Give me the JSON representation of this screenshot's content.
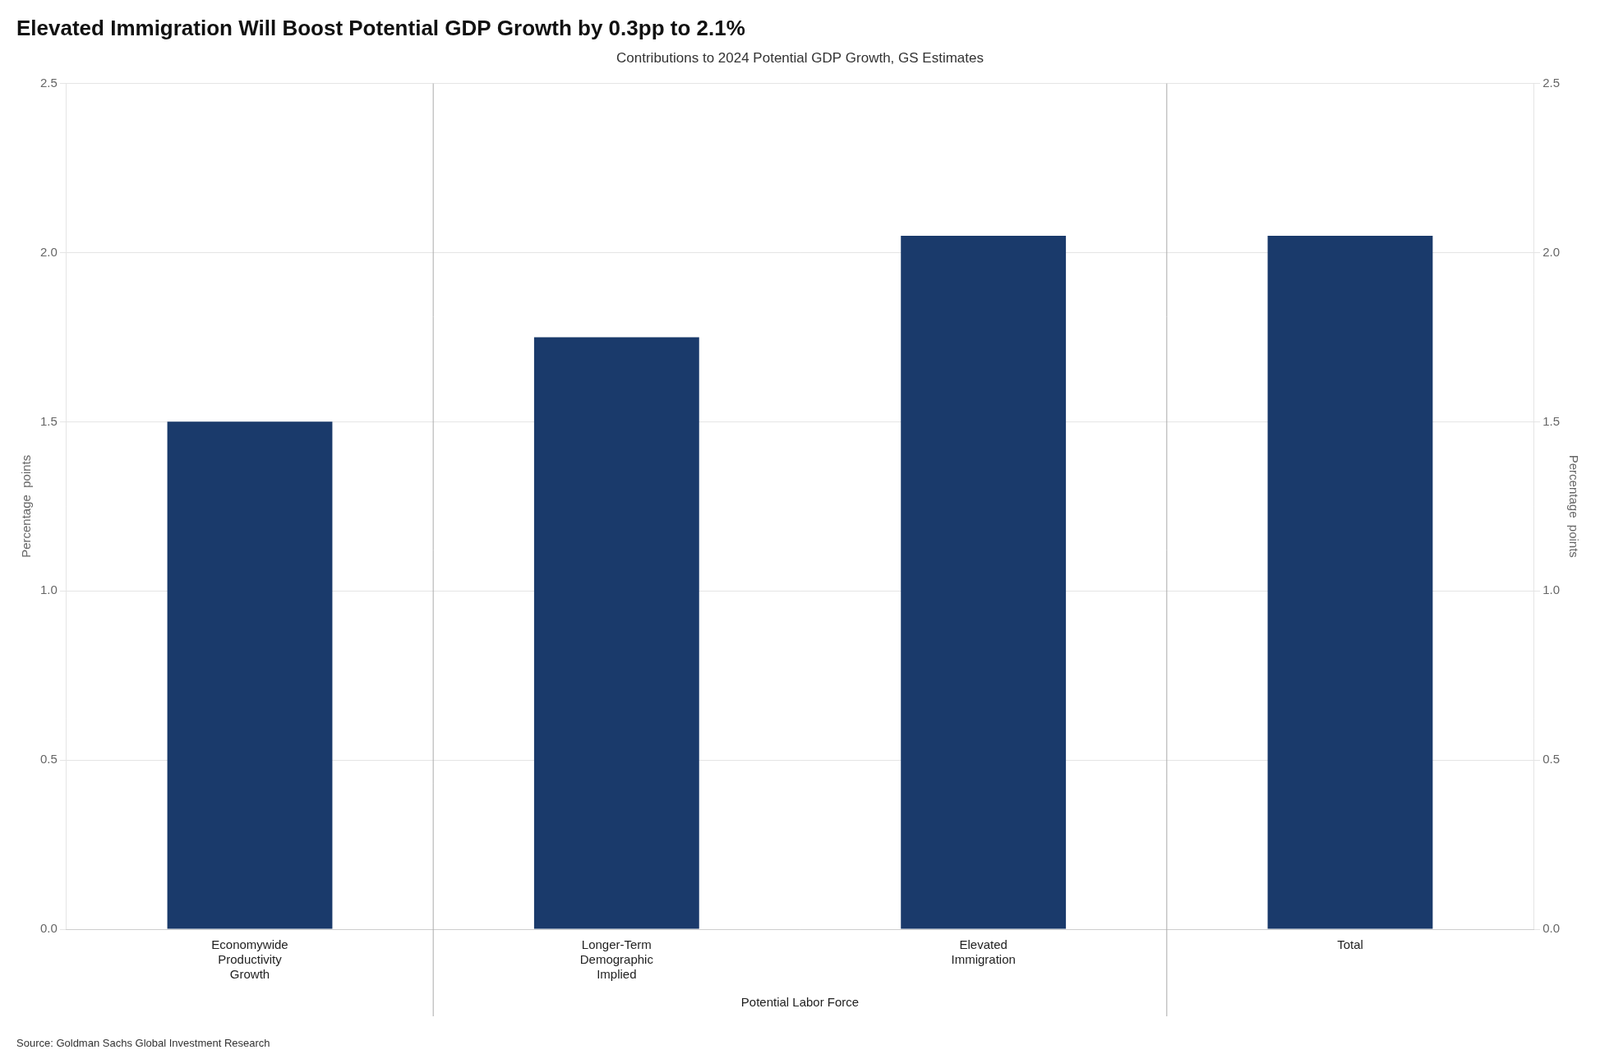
{
  "chart_data": {
    "type": "bar",
    "title": "Elevated Immigration Will Boost Potential GDP Growth by 0.3pp to 2.1%",
    "subtitle": "Contributions to 2024 Potential GDP Growth, GS Estimates",
    "ylabel": "Percentage  points",
    "y2label": "Percentage  points",
    "source": "Source: Goldman Sachs Global Investment Research",
    "categories": [
      "Economywide\nProductivity\nGrowth",
      "Longer-Term\nDemographic\nImplied",
      "Elevated\nImmigration",
      "Total"
    ],
    "values": [
      1.5,
      1.75,
      2.05,
      2.05
    ],
    "color": "#1a3a6b",
    "ylim": [
      0.0,
      2.5
    ],
    "yticks": [
      {
        "value": 0,
        "label": "0.0"
      },
      {
        "value": 0.5,
        "label": "0.5"
      },
      {
        "value": 1,
        "label": "1.0"
      },
      {
        "value": 1.5,
        "label": "1.5"
      },
      {
        "value": 2,
        "label": "2.0"
      },
      {
        "value": 2.5,
        "label": "2.5"
      }
    ],
    "y2lim": [
      0.0,
      2.5
    ],
    "y2ticks": [
      {
        "value": 0,
        "label": "0.0"
      },
      {
        "value": 0.5,
        "label": "0.5"
      },
      {
        "value": 1,
        "label": "1.0"
      },
      {
        "value": 1.5,
        "label": "1.5"
      },
      {
        "value": 2,
        "label": "2.0"
      },
      {
        "value": 2.5,
        "label": "2.5"
      }
    ],
    "annotations": [
      {
        "text": "Potential Labor Force",
        "categories": [
          "Longer-Term\nDemographic\nImplied",
          "Elevated\nImmigration"
        ]
      }
    ],
    "grid": true
  }
}
